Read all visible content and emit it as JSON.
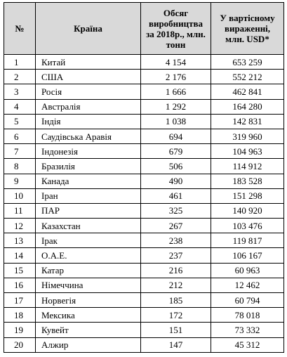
{
  "table": {
    "header": [
      "№",
      "Країна",
      "Обсяг виробництва за 2018р., млн. тонн",
      "У вартісному вираженні, млн. USD*"
    ],
    "rows": [
      [
        "1",
        "Китай",
        "4 154",
        "653 259"
      ],
      [
        "2",
        "США",
        "2 176",
        "552 212"
      ],
      [
        "3",
        "Росія",
        "1 666",
        "462 841"
      ],
      [
        "4",
        "Австралія",
        "1 292",
        "164 280"
      ],
      [
        "5",
        "Індія",
        "1 038",
        "142 831"
      ],
      [
        "6",
        "Саудівська Аравія",
        "694",
        "319 960"
      ],
      [
        "7",
        "Індонезія",
        "679",
        "104 963"
      ],
      [
        "8",
        "Бразилія",
        "506",
        "114 912"
      ],
      [
        "9",
        "Канада",
        "490",
        "183 528"
      ],
      [
        "10",
        "Іран",
        "461",
        "151 298"
      ],
      [
        "11",
        "ПАР",
        "325",
        "140 920"
      ],
      [
        "12",
        "Казахстан",
        "267",
        "103 476"
      ],
      [
        "13",
        "Ірак",
        "238",
        "119 817"
      ],
      [
        "14",
        "О.А.Е.",
        "237",
        "106 167"
      ],
      [
        "15",
        "Катар",
        "216",
        "60 963"
      ],
      [
        "16",
        "Німеччина",
        "212",
        "12 462"
      ],
      [
        "17",
        "Норвегія",
        "185",
        "60 794"
      ],
      [
        "18",
        "Мексика",
        "172",
        "78 018"
      ],
      [
        "19",
        "Кувейт",
        "151",
        "73 332"
      ],
      [
        "20",
        "Алжир",
        "147",
        "45 312"
      ]
    ]
  }
}
